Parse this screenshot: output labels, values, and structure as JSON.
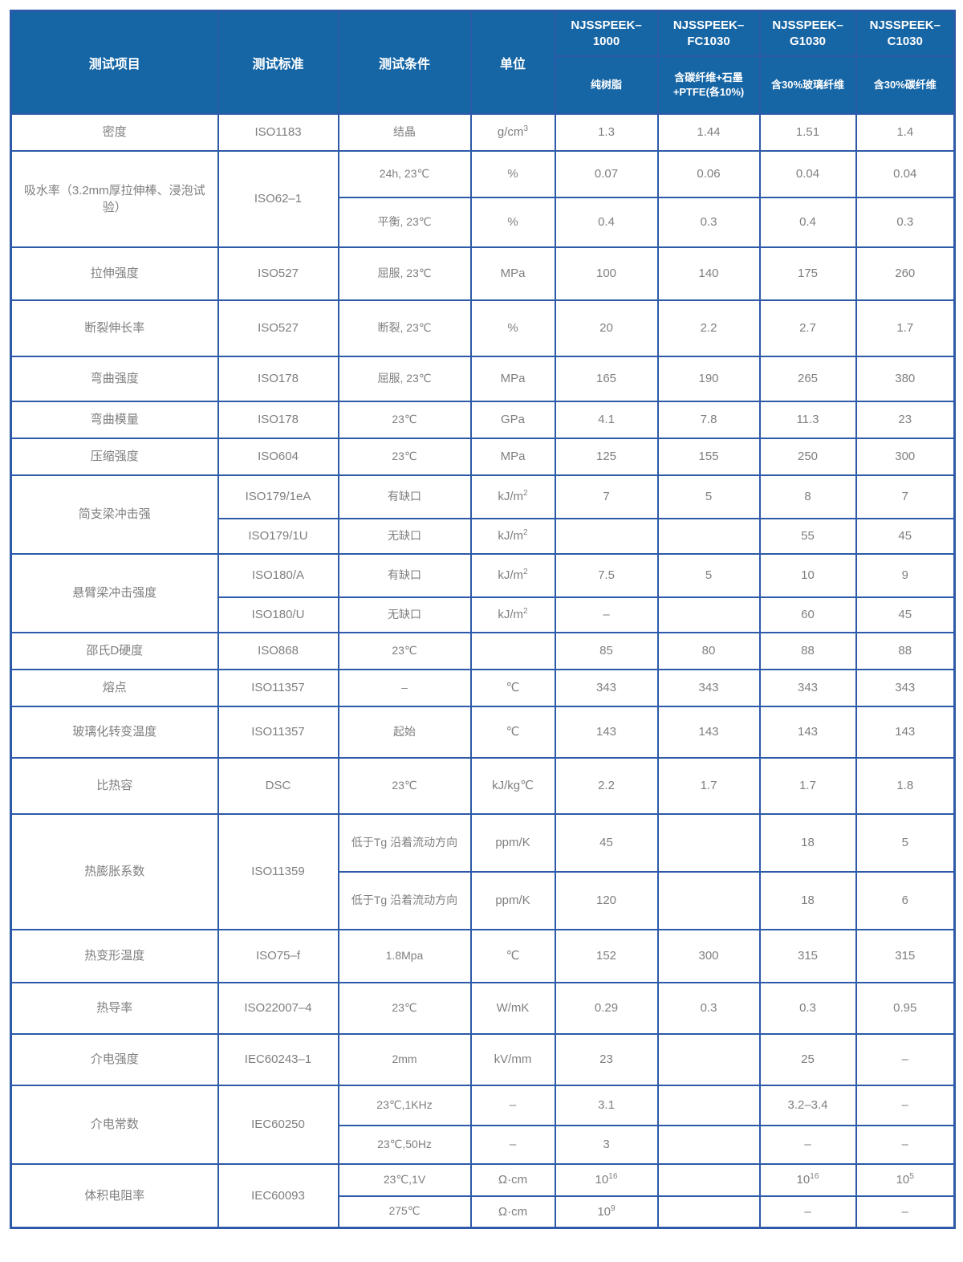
{
  "table": {
    "header": {
      "static_cols": [
        "测试项目",
        "测试标准",
        "测试条件",
        "单位"
      ],
      "products": [
        {
          "name": "NJSSPEEK–1000",
          "desc": "纯树脂"
        },
        {
          "name": "NJSSPEEK–FC1030",
          "desc": "含碳纤维+石墨+PTFE(各10%)"
        },
        {
          "name": "NJSSPEEK–G1030",
          "desc": "含30%玻璃纤维"
        },
        {
          "name": "NJSSPEEK–C1030",
          "desc": "含30%碳纤维"
        }
      ]
    },
    "rows": [
      [
        {
          "text": "密度",
          "kind": "item"
        },
        {
          "text": "ISO1183",
          "kind": "std"
        },
        {
          "text": "结晶",
          "kind": "cond"
        },
        {
          "text": "g/cm^3",
          "kind": "unit"
        },
        {
          "text": "1.3",
          "kind": "val"
        },
        {
          "text": "1.44",
          "kind": "val"
        },
        {
          "text": "1.51",
          "kind": "val"
        },
        {
          "text": "1.4",
          "kind": "val"
        }
      ],
      [
        {
          "text": "吸水率（3.2mm厚拉伸棒、浸泡试验）",
          "kind": "item",
          "rowspan": 2
        },
        {
          "text": "ISO62–1",
          "kind": "std",
          "rowspan": 2
        },
        {
          "text": "24h, 23℃",
          "kind": "cond"
        },
        {
          "text": "%",
          "kind": "unit"
        },
        {
          "text": "0.07",
          "kind": "val"
        },
        {
          "text": "0.06",
          "kind": "val"
        },
        {
          "text": "0.04",
          "kind": "val"
        },
        {
          "text": "0.04",
          "kind": "val"
        }
      ],
      [
        {
          "text": "平衡, 23℃",
          "kind": "cond"
        },
        {
          "text": "%",
          "kind": "unit"
        },
        {
          "text": "0.4",
          "kind": "val"
        },
        {
          "text": "0.3",
          "kind": "val"
        },
        {
          "text": "0.4",
          "kind": "val"
        },
        {
          "text": "0.3",
          "kind": "val"
        }
      ],
      [
        {
          "text": "拉伸强度",
          "kind": "item"
        },
        {
          "text": "ISO527",
          "kind": "std"
        },
        {
          "text": "屈服, 23℃",
          "kind": "cond"
        },
        {
          "text": "MPa",
          "kind": "unit"
        },
        {
          "text": "100",
          "kind": "val"
        },
        {
          "text": "140",
          "kind": "val"
        },
        {
          "text": "175",
          "kind": "val"
        },
        {
          "text": "260",
          "kind": "val"
        }
      ],
      [
        {
          "text": "断裂伸长率",
          "kind": "item"
        },
        {
          "text": "ISO527",
          "kind": "std"
        },
        {
          "text": "断裂, 23℃",
          "kind": "cond"
        },
        {
          "text": "%",
          "kind": "unit"
        },
        {
          "text": "20",
          "kind": "val"
        },
        {
          "text": "2.2",
          "kind": "val"
        },
        {
          "text": "2.7",
          "kind": "val"
        },
        {
          "text": "1.7",
          "kind": "val"
        }
      ],
      [
        {
          "text": "弯曲强度",
          "kind": "item"
        },
        {
          "text": "ISO178",
          "kind": "std"
        },
        {
          "text": "屈服, 23℃",
          "kind": "cond"
        },
        {
          "text": "MPa",
          "kind": "unit"
        },
        {
          "text": "165",
          "kind": "val"
        },
        {
          "text": "190",
          "kind": "val"
        },
        {
          "text": "265",
          "kind": "val"
        },
        {
          "text": "380",
          "kind": "val"
        }
      ],
      [
        {
          "text": "弯曲模量",
          "kind": "item"
        },
        {
          "text": "ISO178",
          "kind": "std"
        },
        {
          "text": "23℃",
          "kind": "cond"
        },
        {
          "text": "GPa",
          "kind": "unit"
        },
        {
          "text": "4.1",
          "kind": "val"
        },
        {
          "text": "7.8",
          "kind": "val"
        },
        {
          "text": "11.3",
          "kind": "val"
        },
        {
          "text": "23",
          "kind": "val"
        }
      ],
      [
        {
          "text": "压缩强度",
          "kind": "item"
        },
        {
          "text": "ISO604",
          "kind": "std"
        },
        {
          "text": "23℃",
          "kind": "cond"
        },
        {
          "text": "MPa",
          "kind": "unit"
        },
        {
          "text": "125",
          "kind": "val"
        },
        {
          "text": "155",
          "kind": "val"
        },
        {
          "text": "250",
          "kind": "val"
        },
        {
          "text": "300",
          "kind": "val"
        }
      ],
      [
        {
          "text": "简支梁冲击强",
          "kind": "item",
          "rowspan": 2
        },
        {
          "text": "ISO179/1eA",
          "kind": "std"
        },
        {
          "text": "有缺口",
          "kind": "cond"
        },
        {
          "text": "kJ/m^2",
          "kind": "unit"
        },
        {
          "text": "7",
          "kind": "val"
        },
        {
          "text": "5",
          "kind": "val"
        },
        {
          "text": "8",
          "kind": "val"
        },
        {
          "text": "7",
          "kind": "val"
        }
      ],
      [
        {
          "text": "ISO179/1U",
          "kind": "std"
        },
        {
          "text": "无缺口",
          "kind": "cond"
        },
        {
          "text": "kJ/m^2",
          "kind": "unit"
        },
        {
          "text": "",
          "kind": "val"
        },
        {
          "text": "",
          "kind": "val"
        },
        {
          "text": "55",
          "kind": "val"
        },
        {
          "text": "45",
          "kind": "val"
        }
      ],
      [
        {
          "text": "悬臂梁冲击强度",
          "kind": "item",
          "rowspan": 2
        },
        {
          "text": "ISO180/A",
          "kind": "std"
        },
        {
          "text": "有缺口",
          "kind": "cond"
        },
        {
          "text": "kJ/m^2",
          "kind": "unit"
        },
        {
          "text": "7.5",
          "kind": "val"
        },
        {
          "text": "5",
          "kind": "val"
        },
        {
          "text": "10",
          "kind": "val"
        },
        {
          "text": "9",
          "kind": "val"
        }
      ],
      [
        {
          "text": "ISO180/U",
          "kind": "std"
        },
        {
          "text": "无缺口",
          "kind": "cond"
        },
        {
          "text": "kJ/m^2",
          "kind": "unit"
        },
        {
          "text": "–",
          "kind": "val"
        },
        {
          "text": "",
          "kind": "val"
        },
        {
          "text": "60",
          "kind": "val"
        },
        {
          "text": "45",
          "kind": "val"
        }
      ],
      [
        {
          "text": "邵氏D硬度",
          "kind": "item"
        },
        {
          "text": "ISO868",
          "kind": "std"
        },
        {
          "text": "23℃",
          "kind": "cond"
        },
        {
          "text": "",
          "kind": "unit"
        },
        {
          "text": "85",
          "kind": "val"
        },
        {
          "text": "80",
          "kind": "val"
        },
        {
          "text": "88",
          "kind": "val"
        },
        {
          "text": "88",
          "kind": "val"
        }
      ],
      [
        {
          "text": "熔点",
          "kind": "item"
        },
        {
          "text": "ISO11357",
          "kind": "std"
        },
        {
          "text": "–",
          "kind": "cond"
        },
        {
          "text": "℃",
          "kind": "unit"
        },
        {
          "text": "343",
          "kind": "val"
        },
        {
          "text": "343",
          "kind": "val"
        },
        {
          "text": "343",
          "kind": "val"
        },
        {
          "text": "343",
          "kind": "val"
        }
      ],
      [
        {
          "text": "玻璃化转变温度",
          "kind": "item"
        },
        {
          "text": "ISO11357",
          "kind": "std"
        },
        {
          "text": "起始",
          "kind": "cond"
        },
        {
          "text": "℃",
          "kind": "unit"
        },
        {
          "text": "143",
          "kind": "val"
        },
        {
          "text": "143",
          "kind": "val"
        },
        {
          "text": "143",
          "kind": "val"
        },
        {
          "text": "143",
          "kind": "val"
        }
      ],
      [
        {
          "text": "比热容",
          "kind": "item"
        },
        {
          "text": "DSC",
          "kind": "std"
        },
        {
          "text": "23℃",
          "kind": "cond"
        },
        {
          "text": "kJ/kg℃",
          "kind": "unit"
        },
        {
          "text": "2.2",
          "kind": "val"
        },
        {
          "text": "1.7",
          "kind": "val"
        },
        {
          "text": "1.7",
          "kind": "val"
        },
        {
          "text": "1.8",
          "kind": "val"
        }
      ],
      [
        {
          "text": "热膨胀系数",
          "kind": "item",
          "rowspan": 2
        },
        {
          "text": "ISO11359",
          "kind": "std",
          "rowspan": 2
        },
        {
          "text": "低于Tg 沿着流动方向",
          "kind": "cond"
        },
        {
          "text": "ppm/K",
          "kind": "unit"
        },
        {
          "text": "45",
          "kind": "val"
        },
        {
          "text": "",
          "kind": "val"
        },
        {
          "text": "18",
          "kind": "val"
        },
        {
          "text": "5",
          "kind": "val"
        }
      ],
      [
        {
          "text": "低于Tg 沿着流动方向",
          "kind": "cond"
        },
        {
          "text": "ppm/K",
          "kind": "unit"
        },
        {
          "text": "120",
          "kind": "val"
        },
        {
          "text": "",
          "kind": "val"
        },
        {
          "text": "18",
          "kind": "val"
        },
        {
          "text": "6",
          "kind": "val"
        }
      ],
      [
        {
          "text": "热变形温度",
          "kind": "item"
        },
        {
          "text": "ISO75–f",
          "kind": "std"
        },
        {
          "text": "1.8Mpa",
          "kind": "cond"
        },
        {
          "text": "℃",
          "kind": "unit"
        },
        {
          "text": "152",
          "kind": "val"
        },
        {
          "text": "300",
          "kind": "val"
        },
        {
          "text": "315",
          "kind": "val"
        },
        {
          "text": "315",
          "kind": "val"
        }
      ],
      [
        {
          "text": "热导率",
          "kind": "item"
        },
        {
          "text": "ISO22007–4",
          "kind": "std"
        },
        {
          "text": "23℃",
          "kind": "cond"
        },
        {
          "text": "W/mK",
          "kind": "unit"
        },
        {
          "text": "0.29",
          "kind": "val"
        },
        {
          "text": "0.3",
          "kind": "val"
        },
        {
          "text": "0.3",
          "kind": "val"
        },
        {
          "text": "0.95",
          "kind": "val"
        }
      ],
      [
        {
          "text": "介电强度",
          "kind": "item"
        },
        {
          "text": "IEC60243–1",
          "kind": "std"
        },
        {
          "text": "2mm",
          "kind": "cond"
        },
        {
          "text": "kV/mm",
          "kind": "unit"
        },
        {
          "text": "23",
          "kind": "val"
        },
        {
          "text": "",
          "kind": "val"
        },
        {
          "text": "25",
          "kind": "val"
        },
        {
          "text": "–",
          "kind": "val"
        }
      ],
      [
        {
          "text": "介电常数",
          "kind": "item",
          "rowspan": 2
        },
        {
          "text": "IEC60250",
          "kind": "std",
          "rowspan": 2
        },
        {
          "text": "23℃,1KHz",
          "kind": "cond"
        },
        {
          "text": "–",
          "kind": "unit"
        },
        {
          "text": "3.1",
          "kind": "val"
        },
        {
          "text": "",
          "kind": "val"
        },
        {
          "text": "3.2–3.4",
          "kind": "val"
        },
        {
          "text": "–",
          "kind": "val"
        }
      ],
      [
        {
          "text": "23℃,50Hz",
          "kind": "cond"
        },
        {
          "text": "–",
          "kind": "unit"
        },
        {
          "text": "3",
          "kind": "val"
        },
        {
          "text": "",
          "kind": "val"
        },
        {
          "text": "–",
          "kind": "val"
        },
        {
          "text": "–",
          "kind": "val"
        }
      ],
      [
        {
          "text": "体积电阻率",
          "kind": "item",
          "rowspan": 2
        },
        {
          "text": "IEC60093",
          "kind": "std",
          "rowspan": 2
        },
        {
          "text": "23℃,1V",
          "kind": "cond"
        },
        {
          "text": "Ω·cm",
          "kind": "unit"
        },
        {
          "text": "10^16",
          "kind": "val"
        },
        {
          "text": "",
          "kind": "val"
        },
        {
          "text": "10^16",
          "kind": "val"
        },
        {
          "text": "10^5",
          "kind": "val"
        }
      ],
      [
        {
          "text": "275℃",
          "kind": "cond"
        },
        {
          "text": "Ω·cm",
          "kind": "unit"
        },
        {
          "text": "10^9",
          "kind": "val"
        },
        {
          "text": "",
          "kind": "val"
        },
        {
          "text": "–",
          "kind": "val"
        },
        {
          "text": "–",
          "kind": "val"
        }
      ]
    ]
  },
  "colors": {
    "header_bg": "#1666a6",
    "border": "#2d5aa8",
    "body_text": "#7f7f7f",
    "header_text": "#ffffff"
  }
}
